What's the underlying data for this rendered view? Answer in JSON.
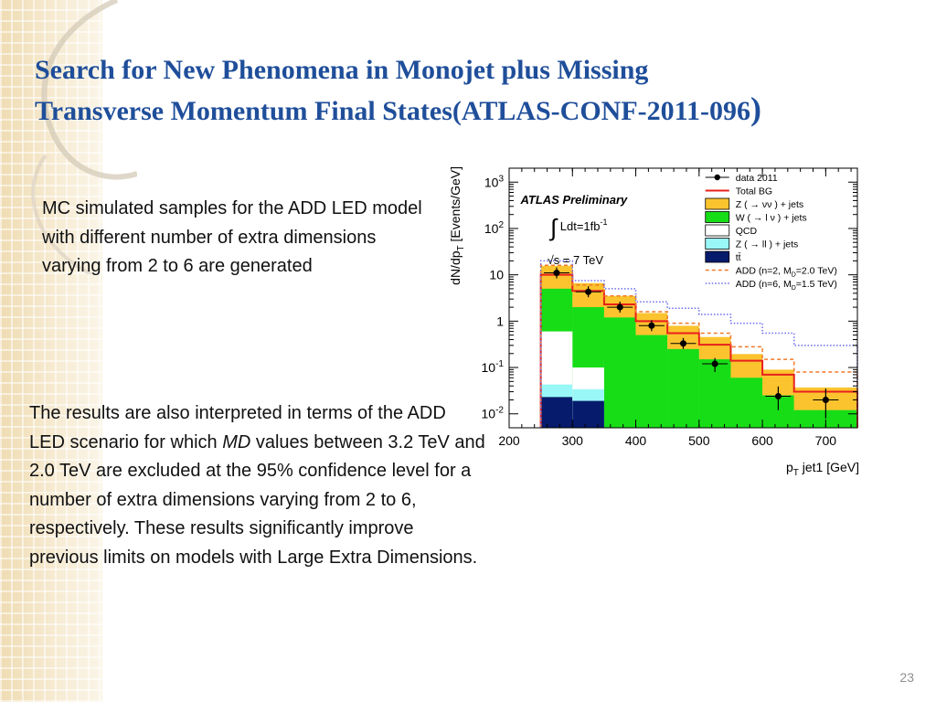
{
  "slide": {
    "title_line1": "Search for New Phenomena in Monojet plus Missing",
    "title_line2": "Transverse Momentum Final States(ATLAS-CONF-2011-096",
    "title_paren": ")",
    "para1": "MC simulated samples for the ADD LED model with different number of extra dimensions varying from 2 to 6 are generated",
    "para2_before": "The results are also interpreted in terms of the ADD LED scenario for which ",
    "para2_italic": "MD",
    "para2_after": " values between 3.2 TeV and 2.0 TeV are excluded at the 95% confidence level for a number of extra dimensions varying from 2 to 6, respectively. These results significantly improve previous limits on models with Large Extra Dimensions.",
    "page_number": "23"
  },
  "chart_data": {
    "type": "bar",
    "scale_y": "log",
    "xlim": [
      200,
      750
    ],
    "ylim": [
      0.005,
      2000
    ],
    "xticks": [
      200,
      300,
      400,
      500,
      600,
      700
    ],
    "yticks": [
      {
        "value": 1000,
        "label": "10^3"
      },
      {
        "value": 100,
        "label": "10^2"
      },
      {
        "value": 10,
        "label": "10"
      },
      {
        "value": 1,
        "label": "1"
      },
      {
        "value": 0.1,
        "label": "10^-1"
      },
      {
        "value": 0.01,
        "label": "10^-2"
      }
    ],
    "xlabel": "p_T jet1 [GeV]",
    "ylabel": "dN/dp_T [Events/GeV]",
    "annotations": [
      "ATLAS Preliminary",
      "∫ Ldt=1fb^-1",
      "√s = 7 TeV"
    ],
    "bin_edges": [
      250,
      300,
      350,
      400,
      450,
      500,
      550,
      600,
      650,
      750
    ],
    "stack": [
      {
        "name": "tt̄",
        "color": "#061b6b",
        "values": [
          0.023,
          0.019,
          0.005,
          0.005,
          0.005,
          0.005,
          0.005,
          0.005,
          0.005
        ]
      },
      {
        "name": "Z ( → ll ) + jets",
        "color": "#99f7f7",
        "values": [
          0.043,
          0.034,
          0.005,
          0.005,
          0.005,
          0.005,
          0.005,
          0.005,
          0.005
        ]
      },
      {
        "name": "QCD",
        "color": "#ffffff",
        "values": [
          0.6,
          0.1,
          0.005,
          0.005,
          0.005,
          0.005,
          0.005,
          0.005,
          0.005
        ]
      },
      {
        "name": "W ( → l ν ) + jets",
        "color": "#17dd17",
        "values": [
          5,
          2.0,
          1.2,
          0.5,
          0.25,
          0.15,
          0.06,
          0.025,
          0.012
        ]
      },
      {
        "name": "Z ( → νν ) + jets",
        "color": "#fbc42e",
        "values": [
          10,
          4.5,
          2.3,
          1.0,
          0.55,
          0.31,
          0.14,
          0.07,
          0.03
        ]
      }
    ],
    "total_bg": {
      "name": "Total BG",
      "color": "#e8201c",
      "values": [
        10,
        4.5,
        2.3,
        1.0,
        0.55,
        0.31,
        0.14,
        0.07,
        0.03
      ]
    },
    "add_n2": {
      "name": "ADD (n=2, M_D=2.0 TeV)",
      "color": "#f07a28",
      "values": [
        16,
        6.0,
        3.5,
        1.6,
        0.9,
        0.55,
        0.28,
        0.15,
        0.08
      ]
    },
    "add_n6": {
      "name": "ADD (n=6, M_D=1.5 TeV)",
      "color": "#6c6cf0",
      "values": [
        20,
        7.5,
        5.0,
        2.6,
        1.9,
        1.4,
        0.9,
        0.55,
        0.3
      ]
    },
    "data": {
      "name": "data 2011",
      "x": [
        275,
        325,
        375,
        425,
        475,
        525,
        625,
        700
      ],
      "y": [
        11.0,
        4.3,
        2.0,
        0.8,
        0.33,
        0.12,
        0.024,
        0.02
      ],
      "err_low": [
        0.5,
        0.3,
        0.15,
        0.09,
        0.06,
        0.04,
        0.012,
        0.012
      ],
      "err_high": [
        0.5,
        0.3,
        0.15,
        0.09,
        0.06,
        0.04,
        0.015,
        0.015
      ]
    },
    "legend_position": "top-right",
    "legend": [
      {
        "label": "data 2011",
        "kind": "marker",
        "color": "#000000"
      },
      {
        "label": "Total BG",
        "kind": "line",
        "color": "#e8201c"
      },
      {
        "label": "Z ( → νν ) + jets",
        "kind": "box",
        "color": "#fbc42e"
      },
      {
        "label": "W ( → l ν ) + jets",
        "kind": "box",
        "color": "#17dd17"
      },
      {
        "label": "QCD",
        "kind": "box",
        "color": "#ffffff"
      },
      {
        "label": "Z ( → ll ) + jets",
        "kind": "box",
        "color": "#99f7f7"
      },
      {
        "label": "tt̄",
        "kind": "box",
        "color": "#061b6b"
      },
      {
        "label": "ADD (n=2, M_D=2.0 TeV)",
        "kind": "dashed",
        "color": "#f07a28"
      },
      {
        "label": "ADD (n=6, M_D=1.5 TeV)",
        "kind": "dotted",
        "color": "#6c6cf0"
      }
    ]
  }
}
